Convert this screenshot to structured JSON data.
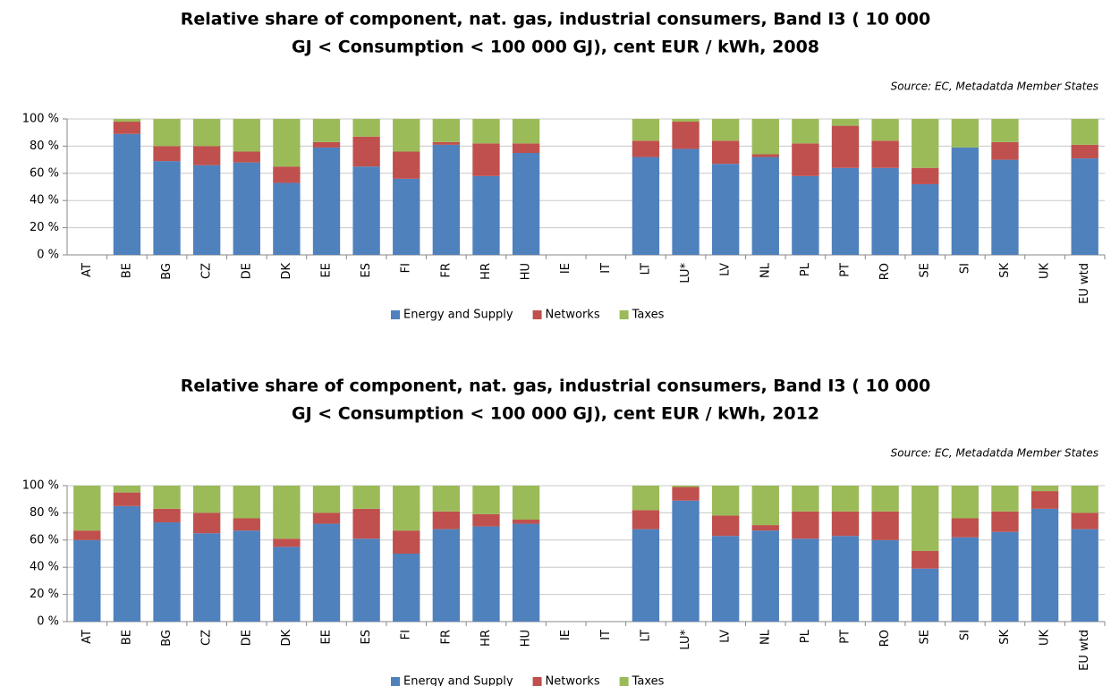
{
  "chart_data": [
    {
      "type": "bar",
      "stacked": true,
      "title": [
        "Relative share of component, nat. gas, industrial consumers, Band I3 (  10 000",
        "GJ < Consumption < 100 000 GJ), cent EUR / kWh, 2008"
      ],
      "source": "Source:  EC, Metadatda  Member States",
      "categories": [
        "AT",
        "BE",
        "BG",
        "CZ",
        "DE",
        "DK",
        "EE",
        "ES",
        "FI",
        "FR",
        "HR",
        "HU",
        "IE",
        "IT",
        "LT",
        "LU*",
        "LV",
        "NL",
        "PL",
        "PT",
        "RO",
        "SE",
        "SI",
        "SK",
        "UK",
        "EU wtd"
      ],
      "series": [
        {
          "name": "Energy and Supply",
          "color": "#4f81bd",
          "values": [
            null,
            89,
            69,
            66,
            68,
            53,
            79,
            65,
            56,
            81,
            58,
            75,
            null,
            null,
            72,
            78,
            67,
            72,
            58,
            64,
            64,
            52,
            79,
            70,
            null,
            71
          ]
        },
        {
          "name": "Networks",
          "color": "#c0504d",
          "values": [
            null,
            9,
            11,
            14,
            8,
            12,
            4,
            22,
            20,
            2,
            24,
            7,
            null,
            null,
            12,
            20,
            17,
            2,
            24,
            31,
            20,
            12,
            0,
            13,
            null,
            10
          ]
        },
        {
          "name": "Taxes",
          "color": "#9bbb59",
          "values": [
            null,
            2,
            20,
            20,
            24,
            35,
            17,
            13,
            24,
            17,
            18,
            18,
            null,
            null,
            16,
            2,
            16,
            26,
            18,
            5,
            16,
            36,
            21,
            17,
            null,
            19
          ]
        }
      ],
      "ylim": [
        0,
        100
      ],
      "yticks": [
        {
          "value": 0,
          "label": "0 %"
        },
        {
          "value": 20,
          "label": "20 %"
        },
        {
          "value": 40,
          "label": "40 %"
        },
        {
          "value": 60,
          "label": "60 %"
        },
        {
          "value": 80,
          "label": "80 %"
        },
        {
          "value": 100,
          "label": "100 %"
        }
      ],
      "grid": true,
      "legend": "bottom"
    },
    {
      "type": "bar",
      "stacked": true,
      "title": [
        "Relative share of component, nat. gas, industrial consumers, Band I3 (  10 000",
        "GJ < Consumption < 100 000 GJ), cent EUR / kWh, 2012"
      ],
      "source": "Source:  EC, Metadatda  Member States",
      "categories": [
        "AT",
        "BE",
        "BG",
        "CZ",
        "DE",
        "DK",
        "EE",
        "ES",
        "FI",
        "FR",
        "HR",
        "HU",
        "IE",
        "IT",
        "LT",
        "LU*",
        "LV",
        "NL",
        "PL",
        "PT",
        "RO",
        "SE",
        "SI",
        "SK",
        "UK",
        "EU wtd"
      ],
      "series": [
        {
          "name": "Energy and Supply",
          "color": "#4f81bd",
          "values": [
            60,
            85,
            73,
            65,
            67,
            55,
            72,
            61,
            50,
            68,
            70,
            72,
            null,
            null,
            68,
            89,
            63,
            67,
            61,
            63,
            60,
            39,
            62,
            66,
            83,
            68
          ]
        },
        {
          "name": "Networks",
          "color": "#c0504d",
          "values": [
            7,
            10,
            10,
            15,
            9,
            6,
            8,
            22,
            17,
            13,
            9,
            3,
            null,
            null,
            14,
            10,
            15,
            4,
            20,
            18,
            21,
            13,
            14,
            15,
            13,
            12
          ]
        },
        {
          "name": "Taxes",
          "color": "#9bbb59",
          "values": [
            33,
            5,
            17,
            20,
            24,
            39,
            20,
            17,
            33,
            19,
            21,
            25,
            null,
            null,
            18,
            1,
            22,
            29,
            19,
            19,
            19,
            48,
            24,
            19,
            4,
            20
          ]
        }
      ],
      "ylim": [
        0,
        100
      ],
      "yticks": [
        {
          "value": 0,
          "label": "0 %"
        },
        {
          "value": 20,
          "label": "20 %"
        },
        {
          "value": 40,
          "label": "40 %"
        },
        {
          "value": 60,
          "label": "60 %"
        },
        {
          "value": 80,
          "label": "80 %"
        },
        {
          "value": 100,
          "label": "100 %"
        }
      ],
      "grid": true,
      "legend": "bottom"
    }
  ]
}
